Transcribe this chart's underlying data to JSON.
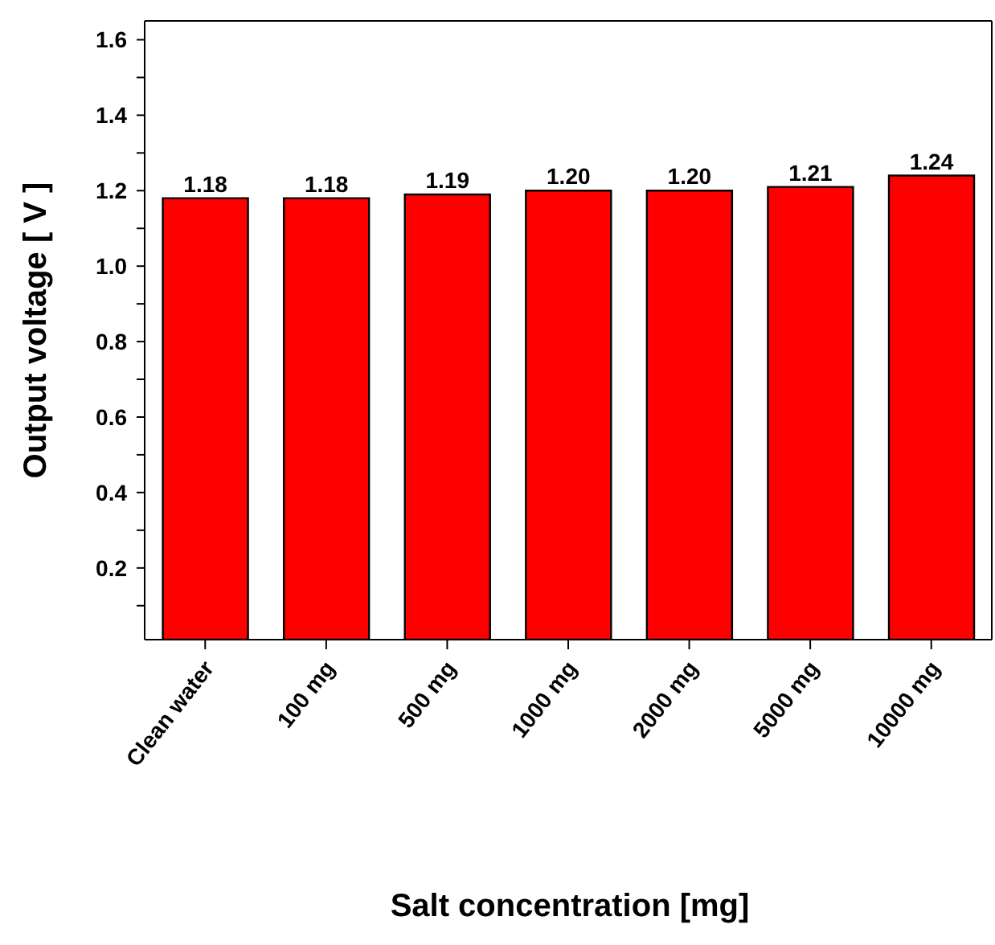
{
  "chart_data": {
    "type": "bar",
    "xlabel": "Salt concentration [mg]",
    "ylabel": "Output voltage [ V ]",
    "categories": [
      "Clean water",
      "100 mg",
      "500 mg",
      "1000 mg",
      "2000 mg",
      "5000 mg",
      "10000 mg"
    ],
    "values": [
      1.18,
      1.18,
      1.19,
      1.2,
      1.2,
      1.21,
      1.24
    ],
    "value_labels": [
      "1.18",
      "1.18",
      "1.19",
      "1.20",
      "1.20",
      "1.21",
      "1.24"
    ],
    "color": "#ff0000",
    "ylim": [
      0.01,
      1.65
    ],
    "yticks": [
      {
        "value": 0.1,
        "label": null
      },
      0.2,
      {
        "value": 0.3,
        "label": null
      },
      0.4,
      {
        "value": 0.5,
        "label": null
      },
      0.6,
      {
        "value": 0.7,
        "label": null
      },
      0.8,
      {
        "value": 0.9,
        "label": null
      },
      {
        "value": 1,
        "label": "1.0"
      },
      {
        "value": 1.1,
        "label": null
      },
      1.2,
      {
        "value": 1.3,
        "label": null
      },
      1.4,
      {
        "value": 1.5,
        "label": null
      },
      1.6
    ]
  }
}
